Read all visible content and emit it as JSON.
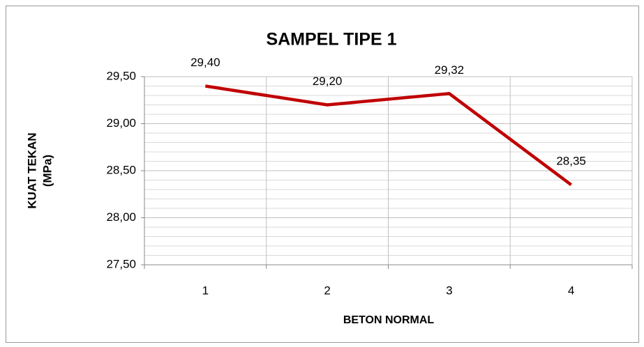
{
  "chart_data": {
    "type": "line",
    "title": "SAMPEL TIPE 1",
    "x_label": "BETON NORMAL",
    "y_label": [
      "KUAT TEKAN",
      "(MPa)"
    ],
    "categories": [
      "1",
      "2",
      "3",
      "4"
    ],
    "series": [
      {
        "name": "Kuat Tekan",
        "color": "#c00000",
        "values": [
          29.4,
          29.2,
          29.32,
          28.35
        ],
        "value_labels": [
          "29,40",
          "29,20",
          "29,32",
          "28,35"
        ]
      }
    ],
    "ylim": [
      27.5,
      29.5
    ],
    "yticks": [
      {
        "value": 27.5,
        "label": "27,50"
      },
      {
        "value": 28.0,
        "label": "28,00"
      },
      {
        "value": 28.5,
        "label": "28,50"
      },
      {
        "value": 29.0,
        "label": "29,00"
      },
      {
        "value": 29.5,
        "label": "29,50"
      }
    ],
    "grid": true,
    "legend": false
  }
}
